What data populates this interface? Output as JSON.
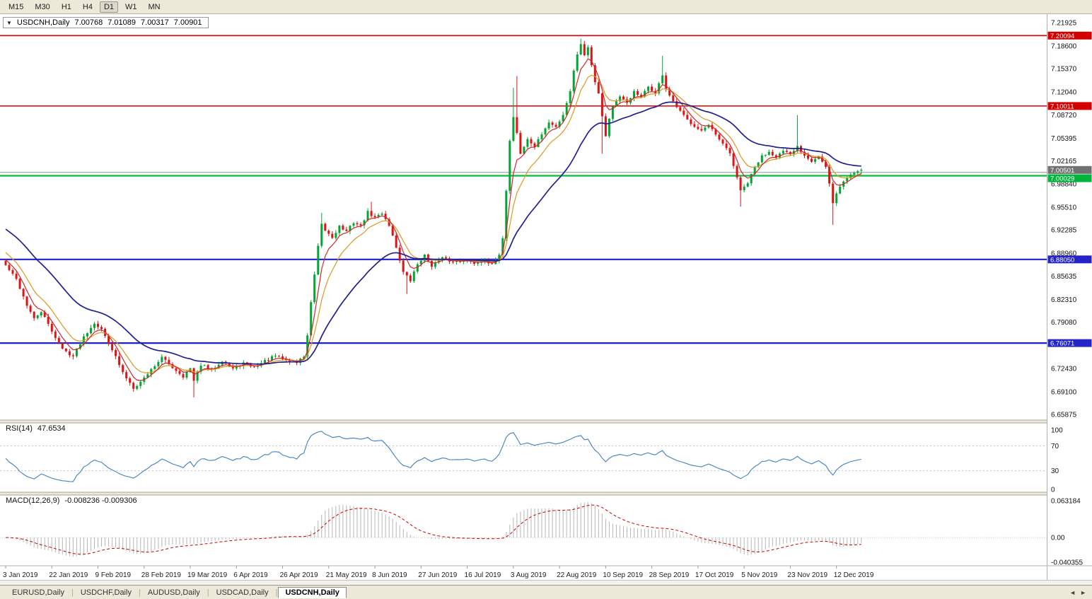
{
  "toolbar": {
    "timeframes": [
      {
        "label": "M15",
        "active": false
      },
      {
        "label": "M30",
        "active": false
      },
      {
        "label": "H1",
        "active": false
      },
      {
        "label": "H4",
        "active": false
      },
      {
        "label": "D1",
        "active": true
      },
      {
        "label": "W1",
        "active": false
      },
      {
        "label": "MN",
        "active": false
      }
    ]
  },
  "chart": {
    "title": {
      "dropdown": "▼",
      "symbol": "USDCNH,Daily",
      "open": "7.00768",
      "high": "7.01089",
      "low": "7.00317",
      "close": "7.00901"
    },
    "axis": {
      "ticks": [
        "7.21925",
        "7.18600",
        "7.15370",
        "7.12040",
        "7.08720",
        "7.05395",
        "7.02165",
        "6.98840",
        "6.95510",
        "6.92285",
        "6.88960",
        "6.85635",
        "6.82310",
        "6.79080",
        "6.72430",
        "6.69100",
        "6.65875"
      ],
      "tags": [
        {
          "text": "7.20094",
          "price": 7.20094,
          "bg": "#d40000",
          "fg": "#ffffff",
          "dy": 0
        },
        {
          "text": "7.10011",
          "price": 7.10011,
          "bg": "#d40000",
          "fg": "#ffffff",
          "dy": 0
        },
        {
          "text": "7.00501",
          "price": 7.00501,
          "bg": "#707070",
          "fg": "#ffffff",
          "dy": -3.5
        },
        {
          "text": "7.00029",
          "price": 7.00029,
          "bg": "#00b43c",
          "fg": "#ffffff",
          "dy": 3.5
        },
        {
          "text": "6.88050",
          "price": 6.8805,
          "bg": "#2424c8",
          "fg": "#ffffff",
          "dy": 0
        },
        {
          "text": "6.76071",
          "price": 6.76071,
          "bg": "#2424c8",
          "fg": "#ffffff",
          "dy": 0
        }
      ]
    }
  },
  "rsi": {
    "label": "RSI(14)",
    "value": "47.6534",
    "axis": [
      "100",
      "70",
      "30",
      "0"
    ],
    "dashed_levels": [
      70,
      30
    ]
  },
  "macd": {
    "label": "MACD(12,26,9)",
    "values": "-0.008236 -0.009306",
    "axis": [
      {
        "text": "0.063184",
        "v": 0.063184
      },
      {
        "text": "0.00",
        "v": 0
      },
      {
        "text": "-0.040355",
        "v": -0.040355
      }
    ],
    "range": {
      "top": 0.063184,
      "bottom": -0.040355
    }
  },
  "dates": [
    [
      "3 Jan 2019",
      0
    ],
    [
      "22 Jan 2019",
      13
    ],
    [
      "9 Feb 2019",
      26
    ],
    [
      "28 Feb 2019",
      39
    ],
    [
      "19 Mar 2019",
      52
    ],
    [
      "6 Apr 2019",
      65
    ],
    [
      "26 Apr 2019",
      78
    ],
    [
      "21 May 2019",
      91
    ],
    [
      "8 Jun 2019",
      104
    ],
    [
      "27 Jun 2019",
      117
    ],
    [
      "16 Jul 2019",
      130
    ],
    [
      "3 Aug 2019",
      143
    ],
    [
      "22 Aug 2019",
      156
    ],
    [
      "10 Sep 2019",
      169
    ],
    [
      "28 Sep 2019",
      182
    ],
    [
      "17 Oct 2019",
      195
    ],
    [
      "5 Nov 2019",
      208
    ],
    [
      "23 Nov 2019",
      221
    ],
    [
      "12 Dec 2019",
      234
    ]
  ],
  "tabs": [
    {
      "label": "EURUSD,Daily",
      "active": false
    },
    {
      "label": "USDCHF,Daily",
      "active": false
    },
    {
      "label": "AUDUSD,Daily",
      "active": false
    },
    {
      "label": "USDCAD,Daily",
      "active": false
    },
    {
      "label": "USDCNH,Daily",
      "active": true
    }
  ],
  "nav": {
    "left": "◄",
    "right": "►"
  },
  "colors": {
    "up": "#00a532",
    "down": "#dc1414",
    "ma_fast": "#d02828",
    "ma_mid": "#d89a20",
    "ma_slow": "#202090",
    "rsi": "#4080c0",
    "macd_hist": "#b6b6b6",
    "macd_signal": "#cc0000",
    "level_red": "#e00000",
    "level_green": "#00c03c",
    "level_blue": "#2020cc",
    "level_gray": "#909090"
  },
  "chart_data": {
    "type": "candlestick",
    "symbol": "USDCNH",
    "timeframe": "Daily",
    "bars": 242,
    "ylim": [
      6.6525,
      7.2235
    ],
    "last_candle": {
      "open": 7.00768,
      "high": 7.01089,
      "low": 7.00317,
      "close": 7.00901
    },
    "horizontal_levels": [
      {
        "price": 7.20094,
        "color": "#e00000",
        "width": 1.6
      },
      {
        "price": 7.10011,
        "color": "#e00000",
        "width": 1.6
      },
      {
        "price": 7.00501,
        "color": "#909090",
        "width": 1
      },
      {
        "price": 7.00029,
        "color": "#00c03c",
        "width": 2.2
      },
      {
        "price": 6.8805,
        "color": "#2020cc",
        "width": 2.2
      },
      {
        "price": 6.76071,
        "color": "#2020cc",
        "width": 2.2
      }
    ],
    "anchors": [
      [
        0,
        6.872
      ],
      [
        3,
        6.852
      ],
      [
        6,
        6.815
      ],
      [
        8,
        6.795
      ],
      [
        10,
        6.806
      ],
      [
        13,
        6.778
      ],
      [
        16,
        6.752
      ],
      [
        19,
        6.742
      ],
      [
        22,
        6.77
      ],
      [
        25,
        6.79
      ],
      [
        27,
        6.78
      ],
      [
        30,
        6.752
      ],
      [
        33,
        6.718
      ],
      [
        36,
        6.697
      ],
      [
        38,
        6.705
      ],
      [
        41,
        6.723
      ],
      [
        44,
        6.74
      ],
      [
        47,
        6.726
      ],
      [
        50,
        6.713
      ],
      [
        52,
        6.724
      ],
      [
        53,
        6.706
      ],
      [
        55,
        6.73
      ],
      [
        58,
        6.722
      ],
      [
        61,
        6.736
      ],
      [
        64,
        6.724
      ],
      [
        67,
        6.732
      ],
      [
        70,
        6.726
      ],
      [
        73,
        6.735
      ],
      [
        76,
        6.742
      ],
      [
        79,
        6.736
      ],
      [
        82,
        6.733
      ],
      [
        84,
        6.742
      ],
      [
        85,
        6.772
      ],
      [
        86,
        6.818
      ],
      [
        87,
        6.858
      ],
      [
        88,
        6.898
      ],
      [
        89,
        6.93
      ],
      [
        90,
        6.922
      ],
      [
        92,
        6.912
      ],
      [
        94,
        6.928
      ],
      [
        96,
        6.92
      ],
      [
        98,
        6.934
      ],
      [
        100,
        6.928
      ],
      [
        102,
        6.948
      ],
      [
        104,
        6.94
      ],
      [
        106,
        6.947
      ],
      [
        108,
        6.93
      ],
      [
        110,
        6.898
      ],
      [
        112,
        6.862
      ],
      [
        114,
        6.85
      ],
      [
        116,
        6.874
      ],
      [
        118,
        6.886
      ],
      [
        120,
        6.872
      ],
      [
        123,
        6.882
      ],
      [
        126,
        6.877
      ],
      [
        129,
        6.88
      ],
      [
        132,
        6.875
      ],
      [
        135,
        6.88
      ],
      [
        137,
        6.872
      ],
      [
        139,
        6.885
      ],
      [
        140,
        6.912
      ],
      [
        141,
        6.98
      ],
      [
        142,
        7.05
      ],
      [
        143,
        7.085
      ],
      [
        144,
        7.062
      ],
      [
        145,
        7.032
      ],
      [
        147,
        7.052
      ],
      [
        149,
        7.042
      ],
      [
        151,
        7.06
      ],
      [
        153,
        7.076
      ],
      [
        155,
        7.07
      ],
      [
        157,
        7.088
      ],
      [
        159,
        7.122
      ],
      [
        160,
        7.15
      ],
      [
        161,
        7.175
      ],
      [
        162,
        7.19
      ],
      [
        163,
        7.172
      ],
      [
        164,
        7.185
      ],
      [
        165,
        7.16
      ],
      [
        166,
        7.135
      ],
      [
        167,
        7.12
      ],
      [
        168,
        7.085
      ],
      [
        169,
        7.058
      ],
      [
        170,
        7.082
      ],
      [
        171,
        7.1
      ],
      [
        173,
        7.112
      ],
      [
        175,
        7.105
      ],
      [
        177,
        7.12
      ],
      [
        179,
        7.112
      ],
      [
        181,
        7.128
      ],
      [
        183,
        7.118
      ],
      [
        185,
        7.145
      ],
      [
        186,
        7.125
      ],
      [
        188,
        7.105
      ],
      [
        190,
        7.092
      ],
      [
        192,
        7.08
      ],
      [
        194,
        7.072
      ],
      [
        196,
        7.065
      ],
      [
        198,
        7.072
      ],
      [
        200,
        7.058
      ],
      [
        202,
        7.045
      ],
      [
        204,
        7.032
      ],
      [
        206,
        6.998
      ],
      [
        207,
        6.978
      ],
      [
        209,
        6.99
      ],
      [
        211,
        7.012
      ],
      [
        213,
        7.028
      ],
      [
        215,
        7.035
      ],
      [
        217,
        7.028
      ],
      [
        219,
        7.035
      ],
      [
        221,
        7.03
      ],
      [
        223,
        7.042
      ],
      [
        225,
        7.03
      ],
      [
        227,
        7.022
      ],
      [
        229,
        7.028
      ],
      [
        231,
        7.012
      ],
      [
        232,
        6.988
      ],
      [
        233,
        6.96
      ],
      [
        234,
        6.976
      ],
      [
        236,
        6.992
      ],
      [
        238,
        7.002
      ],
      [
        240,
        7.007
      ],
      [
        241,
        7.009
      ]
    ],
    "wick_events": [
      {
        "i": 53,
        "low": 6.683
      },
      {
        "i": 89,
        "high": 6.947
      },
      {
        "i": 103,
        "high": 6.963
      },
      {
        "i": 113,
        "low": 6.831
      },
      {
        "i": 143,
        "high": 7.126
      },
      {
        "i": 144,
        "high": 7.143
      },
      {
        "i": 162,
        "high": 7.1965
      },
      {
        "i": 168,
        "low": 7.032
      },
      {
        "i": 185,
        "high": 7.172
      },
      {
        "i": 207,
        "low": 6.956
      },
      {
        "i": 223,
        "high": 7.087
      },
      {
        "i": 233,
        "low": 6.93
      }
    ],
    "indicators": {
      "rsi": {
        "period": 14,
        "current": 47.6534
      },
      "macd": {
        "fast": 12,
        "slow": 26,
        "signal": 9,
        "current_macd": -0.008236,
        "current_signal": -0.009306
      },
      "moving_averages": [
        {
          "name": "fast",
          "approx_period": 5,
          "color": "#d02828"
        },
        {
          "name": "medium",
          "approx_period": 10,
          "color": "#d89a20"
        },
        {
          "name": "slow",
          "approx_period": 30,
          "color": "#202090"
        }
      ]
    }
  }
}
